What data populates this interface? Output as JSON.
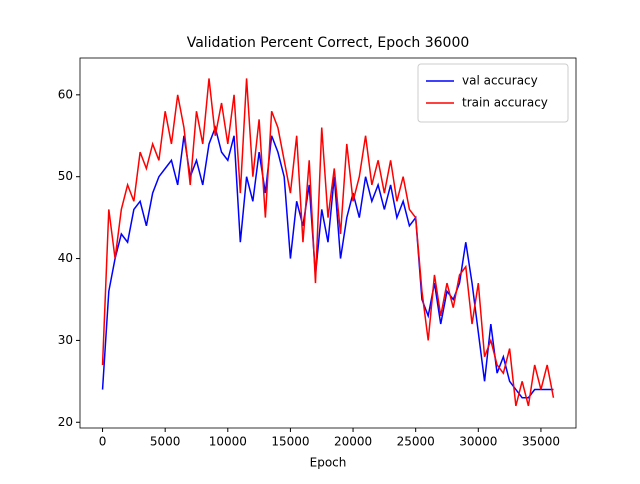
{
  "chart_data": {
    "type": "line",
    "title": "Validation Percent Correct, Epoch 36000",
    "xlabel": "Epoch",
    "x": [
      0,
      500,
      1000,
      1500,
      2000,
      2500,
      3000,
      3500,
      4000,
      4500,
      5000,
      5500,
      6000,
      6500,
      7000,
      7500,
      8000,
      8500,
      9000,
      9500,
      10000,
      10500,
      11000,
      11500,
      12000,
      12500,
      13000,
      13500,
      14000,
      14500,
      15000,
      15500,
      16000,
      16500,
      17000,
      17500,
      18000,
      18500,
      19000,
      19500,
      20000,
      20500,
      21000,
      21500,
      22000,
      22500,
      23000,
      23500,
      24000,
      24500,
      25000,
      25500,
      26000,
      26500,
      27000,
      27500,
      28000,
      28500,
      29000,
      29500,
      30000,
      30500,
      31000,
      31500,
      32000,
      32500,
      33000,
      33500,
      34000,
      34500,
      35000,
      35500,
      36000
    ],
    "series": [
      {
        "name": "val accuracy",
        "color": "#0000ff",
        "values": [
          24,
          36,
          40,
          43,
          42,
          46,
          47,
          44,
          48,
          50,
          51,
          52,
          49,
          55,
          50,
          52,
          49,
          54,
          56,
          53,
          52,
          55,
          42,
          50,
          47,
          53,
          48,
          55,
          53,
          50,
          40,
          47,
          44,
          49,
          38,
          46,
          42,
          50,
          40,
          45,
          48,
          45,
          50,
          47,
          49,
          46,
          49,
          45,
          47,
          44,
          45,
          35,
          33,
          37,
          32,
          36,
          35,
          37,
          42,
          37,
          31,
          25,
          32,
          26,
          28,
          25,
          24,
          23,
          23,
          24,
          24,
          24,
          24
        ]
      },
      {
        "name": "train accuracy",
        "color": "#ff0000",
        "values": [
          27,
          46,
          40,
          46,
          49,
          47,
          53,
          51,
          54,
          52,
          58,
          54,
          60,
          56,
          49,
          58,
          54,
          62,
          55,
          59,
          54,
          60,
          48,
          62,
          50,
          57,
          45,
          58,
          56,
          52,
          48,
          55,
          42,
          52,
          37,
          56,
          45,
          51,
          43,
          54,
          47,
          50,
          55,
          49,
          52,
          48,
          52,
          47,
          50,
          46,
          45,
          36,
          30,
          38,
          33,
          37,
          34,
          38,
          39,
          32,
          37,
          28,
          30,
          27,
          26,
          29,
          22,
          25,
          22,
          27,
          24,
          27,
          23
        ]
      }
    ],
    "xlim": [
      -1800,
      37800
    ],
    "xticks": [
      0,
      5000,
      10000,
      15000,
      20000,
      25000,
      30000,
      35000
    ],
    "ylim": [
      19.3,
      64.5
    ],
    "yticks": [
      20,
      30,
      40,
      50,
      60
    ],
    "legend": "upper right"
  }
}
